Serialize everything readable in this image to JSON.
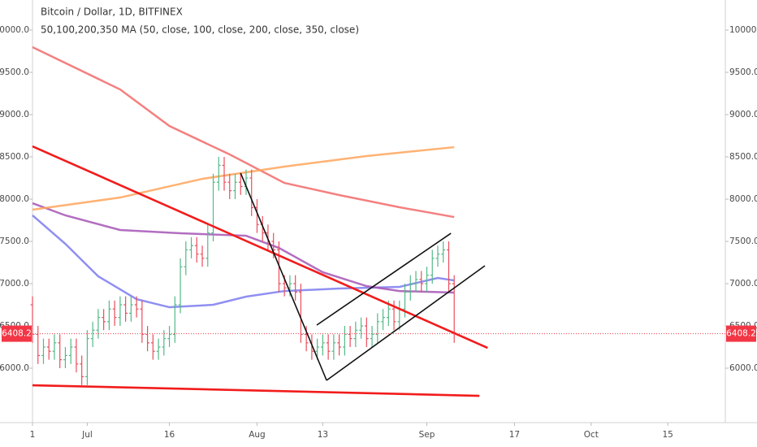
{
  "chart_data": {
    "type": "ohlc",
    "title": "Bitcoin / Dollar, 1D, BITFINEX",
    "indicator_label": "50,100,200,350 MA (50, close, 100, close, 200, close, 350, close)",
    "up_color": "#53b987",
    "down_color": "#eb4d5c",
    "xlim": [
      -10,
      116.5
    ],
    "xticks": [
      {
        "value": -10,
        "label": "1"
      },
      {
        "value": 0,
        "label": "Jul"
      },
      {
        "value": 15,
        "label": "16"
      },
      {
        "value": 31,
        "label": "Aug"
      },
      {
        "value": 43,
        "label": "13"
      },
      {
        "value": 62,
        "label": "Sep"
      },
      {
        "value": 78,
        "label": "17"
      },
      {
        "value": 92,
        "label": "Oct"
      },
      {
        "value": 106,
        "label": "15"
      }
    ],
    "ylim": [
      5356,
      10356
    ],
    "yticks": [
      {
        "value": 6000,
        "label": "6000.0"
      },
      {
        "value": 6500,
        "label": "6500.0"
      },
      {
        "value": 7000,
        "label": "7000.0"
      },
      {
        "value": 7500,
        "label": "7500.0"
      },
      {
        "value": 8000,
        "label": "8000.0"
      },
      {
        "value": 8500,
        "label": "8500.0"
      },
      {
        "value": 9000,
        "label": "9000.0"
      },
      {
        "value": 9500,
        "label": "9500.0"
      },
      {
        "value": 10000,
        "label": "10000.0"
      }
    ],
    "last_price": 6408.2,
    "last_price_color": "#f23645",
    "x": [
      -10,
      -9,
      -8,
      -7,
      -6,
      -5,
      -4,
      -3,
      -2,
      -1,
      0,
      1,
      2,
      3,
      4,
      5,
      6,
      7,
      8,
      9,
      10,
      11,
      12,
      13,
      14,
      15,
      16,
      17,
      18,
      19,
      20,
      21,
      22,
      23,
      24,
      25,
      26,
      27,
      28,
      29,
      30,
      31,
      32,
      33,
      34,
      35,
      36,
      37,
      38,
      39,
      40,
      41,
      42,
      43,
      44,
      45,
      46,
      47,
      48,
      49,
      50,
      51,
      52,
      53,
      54,
      55,
      56,
      57,
      58,
      59,
      60,
      61,
      62,
      63,
      64,
      65,
      66,
      67
    ],
    "open": [
      6750,
      6400,
      6150,
      6250,
      6200,
      6300,
      6100,
      6150,
      6250,
      6050,
      5900,
      6350,
      6450,
      6600,
      6550,
      6700,
      6600,
      6750,
      6650,
      6750,
      6700,
      6400,
      6300,
      6200,
      6250,
      6350,
      6400,
      6750,
      7200,
      7400,
      7450,
      7350,
      7300,
      7600,
      8200,
      8400,
      8200,
      8100,
      8200,
      8150,
      8250,
      7900,
      7700,
      7600,
      7500,
      7400,
      7000,
      6950,
      7000,
      6900,
      6400,
      6300,
      6200,
      6250,
      6300,
      6200,
      6300,
      6250,
      6400,
      6350,
      6450,
      6500,
      6350,
      6400,
      6550,
      6600,
      6700,
      6550,
      6700,
      6900,
      7000,
      7050,
      7000,
      7100,
      7300,
      7350,
      7400,
      7000
    ],
    "high": [
      6850,
      6500,
      6350,
      6350,
      6400,
      6400,
      6250,
      6350,
      6350,
      6150,
      6450,
      6550,
      6700,
      6700,
      6800,
      6800,
      6850,
      6850,
      6850,
      6850,
      6800,
      6500,
      6400,
      6350,
      6450,
      6500,
      6850,
      7300,
      7500,
      7550,
      7550,
      7450,
      7700,
      8300,
      8500,
      8500,
      8300,
      8300,
      8300,
      8350,
      8350,
      8000,
      7800,
      7700,
      7600,
      7500,
      7100,
      7100,
      7100,
      7000,
      6500,
      6400,
      6350,
      6400,
      6400,
      6400,
      6400,
      6500,
      6500,
      6550,
      6600,
      6600,
      6500,
      6650,
      6700,
      6800,
      6800,
      6800,
      7000,
      7100,
      7150,
      7150,
      7200,
      7400,
      7450,
      7500,
      7500,
      7100
    ],
    "low": [
      6300,
      6050,
      6050,
      6100,
      6100,
      6000,
      6000,
      6050,
      5950,
      5800,
      5800,
      6250,
      6350,
      6450,
      6450,
      6500,
      6500,
      6550,
      6550,
      6600,
      6300,
      6200,
      6100,
      6100,
      6150,
      6250,
      6300,
      6650,
      7100,
      7300,
      7250,
      7200,
      7200,
      7500,
      8100,
      8100,
      8000,
      8000,
      8050,
      8050,
      7800,
      7600,
      7500,
      7400,
      7300,
      6900,
      6850,
      6850,
      6800,
      6300,
      6200,
      6100,
      6100,
      6150,
      6100,
      6100,
      6150,
      6150,
      6250,
      6250,
      6350,
      6250,
      6250,
      6300,
      6450,
      6500,
      6450,
      6450,
      6600,
      6800,
      6900,
      6900,
      6900,
      7000,
      7200,
      7250,
      6900,
      6300
    ],
    "close": [
      6400,
      6150,
      6250,
      6200,
      6300,
      6100,
      6150,
      6250,
      6050,
      5900,
      6350,
      6450,
      6600,
      6550,
      6700,
      6600,
      6750,
      6650,
      6750,
      6700,
      6400,
      6300,
      6200,
      6250,
      6350,
      6400,
      6750,
      7200,
      7400,
      7450,
      7350,
      7300,
      7600,
      8200,
      8400,
      8200,
      8100,
      8200,
      8150,
      8250,
      7900,
      7700,
      7600,
      7500,
      7400,
      7000,
      6950,
      7000,
      6900,
      6400,
      6300,
      6200,
      6250,
      6300,
      6200,
      6300,
      6250,
      6400,
      6350,
      6450,
      6500,
      6350,
      6400,
      6550,
      6600,
      6700,
      6550,
      6700,
      6900,
      7000,
      7050,
      7000,
      7100,
      7300,
      7350,
      7400,
      7000,
      6408.2
    ],
    "series": [
      {
        "color": "#7b7bf0",
        "x": [
          -10,
          -4,
          2,
          9,
          15,
          23,
          29,
          36,
          46,
          57,
          64,
          67
        ],
        "values": [
          7808,
          7471,
          7087,
          6817,
          6721,
          6750,
          6846,
          6913,
          6942,
          6962,
          7067,
          7038
        ]
      },
      {
        "color": "#a455b5",
        "x": [
          -10,
          -4,
          6,
          17,
          29,
          35,
          43,
          51,
          57,
          67
        ],
        "values": [
          7952,
          7808,
          7635,
          7596,
          7567,
          7423,
          7135,
          6971,
          6913,
          6894
        ]
      },
      {
        "color": "#f26a6a",
        "x": [
          -10,
          6,
          15,
          26,
          36,
          46,
          57,
          67
        ],
        "values": [
          9798,
          9298,
          8865,
          8529,
          8192,
          8048,
          7904,
          7788
        ]
      },
      {
        "color": "#ffa55a",
        "x": [
          -10,
          6,
          21,
          36,
          51,
          67
        ],
        "values": [
          7875,
          8019,
          8240,
          8385,
          8510,
          8615
        ]
      }
    ],
    "trend_lines": [
      {
        "color": "#f21c1c",
        "points": [
          [
            -10,
            8625
          ],
          [
            73.1,
            6240
          ]
        ]
      },
      {
        "color": "#f21c1c",
        "points": [
          [
            -10,
            5798
          ],
          [
            71.6,
            5673
          ]
        ]
      },
      {
        "color": "#111111",
        "points": [
          [
            28,
            8308
          ],
          [
            43.7,
            5856
          ]
        ]
      },
      {
        "color": "#111111",
        "points": [
          [
            43.7,
            5856
          ],
          [
            72.6,
            7212
          ]
        ]
      },
      {
        "color": "#111111",
        "points": [
          [
            41.9,
            6510
          ],
          [
            66.4,
            7596
          ]
        ]
      }
    ]
  }
}
